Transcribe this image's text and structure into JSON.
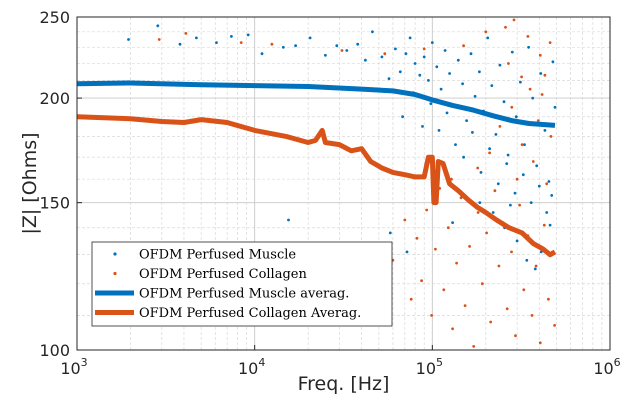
{
  "chart_data": {
    "type": "scatter",
    "title": "",
    "xlabel": "Freq. [Hz]",
    "ylabel": "|Z| [Ohms]",
    "x_scale": "log",
    "y_scale": "log",
    "xlim": [
      1000,
      1000000
    ],
    "ylim": [
      100,
      250
    ],
    "x_ticks": [
      {
        "value": 1000,
        "mantissa": "10",
        "exp": "3"
      },
      {
        "value": 10000,
        "mantissa": "10",
        "exp": "4"
      },
      {
        "value": 100000,
        "mantissa": "10",
        "exp": "5"
      },
      {
        "value": 1000000,
        "mantissa": "10",
        "exp": "6"
      }
    ],
    "y_ticks": [
      {
        "value": 100,
        "label": "100"
      },
      {
        "value": 150,
        "label": "150"
      },
      {
        "value": 200,
        "label": "200"
      },
      {
        "value": 250,
        "label": "250"
      }
    ],
    "grid": true,
    "minor_grid": true,
    "legend_position": "lower-left",
    "series": [
      {
        "name": "OFDM Perfused Muscle",
        "kind": "scatter",
        "color": "#0072BD",
        "points": [
          [
            1950,
            235
          ],
          [
            2850,
            244
          ],
          [
            3800,
            232
          ],
          [
            4700,
            236
          ],
          [
            6100,
            233
          ],
          [
            7400,
            237
          ],
          [
            9200,
            238
          ],
          [
            11000,
            226
          ],
          [
            14500,
            230
          ],
          [
            17000,
            231
          ],
          [
            20500,
            236
          ],
          [
            25000,
            225
          ],
          [
            29000,
            231
          ],
          [
            33000,
            228
          ],
          [
            38000,
            232
          ],
          [
            42000,
            222
          ],
          [
            46000,
            240
          ],
          [
            52000,
            224
          ],
          [
            57000,
            211
          ],
          [
            62000,
            229
          ],
          [
            66000,
            215
          ],
          [
            71000,
            226
          ],
          [
            75000,
            236
          ],
          [
            80000,
            220
          ],
          [
            85000,
            213
          ],
          [
            90000,
            224
          ],
          [
            95000,
            210
          ],
          [
            100000,
            233
          ],
          [
            106000,
            218
          ],
          [
            112000,
            205
          ],
          [
            118000,
            228
          ],
          [
            125000,
            214
          ],
          [
            132000,
            196
          ],
          [
            140000,
            222
          ],
          [
            148000,
            208
          ],
          [
            156000,
            188
          ],
          [
            165000,
            226
          ],
          [
            174000,
            201
          ],
          [
            184000,
            215
          ],
          [
            194000,
            193
          ],
          [
            205000,
            236
          ],
          [
            216000,
            207
          ],
          [
            228000,
            181
          ],
          [
            240000,
            219
          ],
          [
            253000,
            198
          ],
          [
            267000,
            171
          ],
          [
            282000,
            227
          ],
          [
            297000,
            190
          ],
          [
            313000,
            209
          ],
          [
            330000,
            176
          ],
          [
            348000,
            230
          ],
          [
            367000,
            200
          ],
          [
            387000,
            166
          ],
          [
            408000,
            214
          ],
          [
            430000,
            183
          ],
          [
            453000,
            159
          ],
          [
            477000,
            221
          ],
          [
            490000,
            195
          ],
          [
            68000,
            190
          ],
          [
            78000,
            203
          ],
          [
            88000,
            185
          ],
          [
            98000,
            197
          ],
          [
            109000,
            183
          ],
          [
            121000,
            192
          ],
          [
            135000,
            176
          ],
          [
            150000,
            170
          ],
          [
            168000,
            182
          ],
          [
            188000,
            163
          ],
          [
            210000,
            174
          ],
          [
            235000,
            158
          ],
          [
            262000,
            167
          ],
          [
            292000,
            154
          ],
          [
            325000,
            162
          ],
          [
            360000,
            150
          ],
          [
            400000,
            157
          ],
          [
            440000,
            146
          ],
          [
            470000,
            153
          ],
          [
            255000,
            140
          ],
          [
            300000,
            135
          ],
          [
            410000,
            131
          ],
          [
            15500,
            143
          ],
          [
            21000,
            130
          ],
          [
            58000,
            138
          ],
          [
            72000,
            131
          ],
          [
            340000,
            128
          ],
          [
            380000,
            125
          ],
          [
            460000,
            141
          ],
          [
            130000,
            142
          ],
          [
            185000,
            150
          ],
          [
            220000,
            146
          ],
          [
            275000,
            149
          ]
        ]
      },
      {
        "name": "OFDM Perfused Collagen",
        "kind": "scatter",
        "color": "#D95319",
        "points": [
          [
            2900,
            235
          ],
          [
            4100,
            239
          ],
          [
            8400,
            233
          ],
          [
            12500,
            232
          ],
          [
            31000,
            228
          ],
          [
            54000,
            226
          ],
          [
            90000,
            229
          ],
          [
            150000,
            231
          ],
          [
            200000,
            240
          ],
          [
            258000,
            243
          ],
          [
            288000,
            248
          ],
          [
            345000,
            237
          ],
          [
            405000,
            225
          ],
          [
            460000,
            233
          ],
          [
            5200,
            120
          ],
          [
            6800,
            127
          ],
          [
            8000,
            117
          ],
          [
            14000,
            124
          ],
          [
            23000,
            122
          ],
          [
            34000,
            131
          ],
          [
            60000,
            128
          ],
          [
            70000,
            143
          ],
          [
            76000,
            115
          ],
          [
            82000,
            136
          ],
          [
            87000,
            121
          ],
          [
            93000,
            147
          ],
          [
            99000,
            110
          ],
          [
            104000,
            132
          ],
          [
            110000,
            156
          ],
          [
            116000,
            118
          ],
          [
            123000,
            140
          ],
          [
            130000,
            106
          ],
          [
            137000,
            127
          ],
          [
            145000,
            152
          ],
          [
            153000,
            113
          ],
          [
            162000,
            133
          ],
          [
            171000,
            101
          ],
          [
            181000,
            146
          ],
          [
            191000,
            120
          ],
          [
            202000,
            138
          ],
          [
            213000,
            108
          ],
          [
            225000,
            155
          ],
          [
            237000,
            126
          ],
          [
            250000,
            142
          ],
          [
            264000,
            112
          ],
          [
            279000,
            131
          ],
          [
            294000,
            104
          ],
          [
            310000,
            149
          ],
          [
            327000,
            118
          ],
          [
            345000,
            137
          ],
          [
            364000,
            110
          ],
          [
            384000,
            126
          ],
          [
            405000,
            102
          ],
          [
            427000,
            141
          ],
          [
            450000,
            115
          ],
          [
            475000,
            131
          ],
          [
            488000,
            107
          ],
          [
            240000,
            185
          ],
          [
            280000,
            195
          ],
          [
            320000,
            176
          ],
          [
            355000,
            205
          ],
          [
            395000,
            188
          ],
          [
            430000,
            213
          ],
          [
            465000,
            180
          ],
          [
            180000,
            165
          ],
          [
            210000,
            172
          ],
          [
            300000,
            160
          ],
          [
            370000,
            168
          ],
          [
            440000,
            158
          ],
          [
            268000,
            220
          ],
          [
            318000,
            212
          ],
          [
            415000,
            202
          ],
          [
            97000,
            168
          ],
          [
            128000,
            160
          ]
        ]
      },
      {
        "name": "OFDM Perfused Muscle averag.",
        "kind": "line",
        "color": "#0072BD",
        "points": [
          [
            1000,
            208
          ],
          [
            2000,
            208.5
          ],
          [
            5000,
            207.5
          ],
          [
            10000,
            207
          ],
          [
            20000,
            206.5
          ],
          [
            40000,
            205
          ],
          [
            60000,
            204
          ],
          [
            80000,
            202
          ],
          [
            100000,
            199
          ],
          [
            130000,
            196
          ],
          [
            170000,
            193.5
          ],
          [
            220000,
            190.5
          ],
          [
            280000,
            188
          ],
          [
            350000,
            186.5
          ],
          [
            420000,
            186
          ],
          [
            490000,
            185.5
          ]
        ]
      },
      {
        "name": "OFDM Perfused Collagen Averag.",
        "kind": "line",
        "color": "#D95319",
        "points": [
          [
            1000,
            190
          ],
          [
            2000,
            189
          ],
          [
            3000,
            187.5
          ],
          [
            4000,
            187
          ],
          [
            5000,
            188.5
          ],
          [
            7000,
            187
          ],
          [
            10000,
            183
          ],
          [
            15000,
            180
          ],
          [
            20000,
            177
          ],
          [
            22000,
            178
          ],
          [
            24000,
            183
          ],
          [
            25000,
            177
          ],
          [
            30000,
            176
          ],
          [
            35000,
            173
          ],
          [
            40000,
            174
          ],
          [
            45000,
            168
          ],
          [
            52000,
            165
          ],
          [
            60000,
            163
          ],
          [
            70000,
            162
          ],
          [
            80000,
            161
          ],
          [
            90000,
            161
          ],
          [
            95000,
            170
          ],
          [
            100000,
            170
          ],
          [
            102000,
            150
          ],
          [
            105000,
            150
          ],
          [
            108000,
            168
          ],
          [
            115000,
            167
          ],
          [
            125000,
            158
          ],
          [
            140000,
            155
          ],
          [
            160000,
            151
          ],
          [
            180000,
            148
          ],
          [
            200000,
            146
          ],
          [
            230000,
            143
          ],
          [
            270000,
            140
          ],
          [
            320000,
            138
          ],
          [
            370000,
            134
          ],
          [
            420000,
            132
          ],
          [
            460000,
            130
          ],
          [
            490000,
            131
          ]
        ]
      }
    ]
  }
}
